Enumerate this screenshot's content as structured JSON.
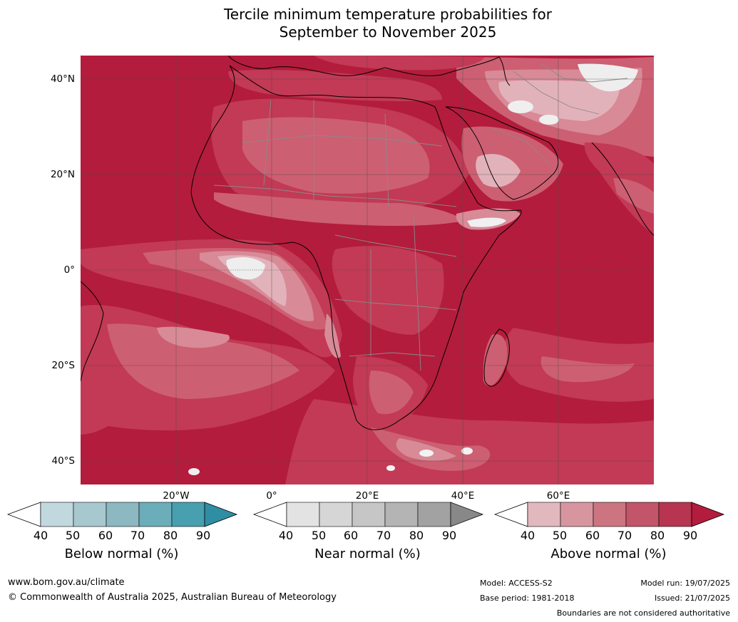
{
  "title": {
    "line1": "Tercile minimum temperature probabilities for",
    "line2": "September to November 2025"
  },
  "map": {
    "lat_labels": [
      "40°N",
      "20°N",
      "0°",
      "20°S",
      "40°S"
    ],
    "lon_labels": [
      "20°W",
      "0°",
      "20°E",
      "40°E",
      "60°E"
    ],
    "colors": {
      "ocean_above_90": "#b31c3c",
      "above_80": "#c23a55",
      "above_70": "#cd5f72",
      "above_60": "#d88a97",
      "above_50": "#e2b2ba",
      "near_normal": "#e6e6e6",
      "country_border": "#808080",
      "coast": "#000000",
      "grid": "#555555"
    }
  },
  "colorbars": [
    {
      "name": "below",
      "title": "Below normal (%)",
      "ticks": [
        "40",
        "50",
        "60",
        "70",
        "80",
        "90"
      ],
      "colors": [
        "#ffffff",
        "#c1d8de",
        "#a8c8cf",
        "#8cb8c2",
        "#6badb9",
        "#489fb0",
        "#2f8ea3"
      ]
    },
    {
      "name": "near",
      "title": "Near normal (%)",
      "ticks": [
        "40",
        "50",
        "60",
        "70",
        "80",
        "90"
      ],
      "colors": [
        "#ffffff",
        "#e3e3e3",
        "#d6d6d6",
        "#c6c6c6",
        "#b4b4b4",
        "#a2a2a2",
        "#888888"
      ]
    },
    {
      "name": "above",
      "title": "Above normal (%)",
      "ticks": [
        "40",
        "50",
        "60",
        "70",
        "80",
        "90"
      ],
      "colors": [
        "#ffffff",
        "#e2b8bf",
        "#d7969f",
        "#cc7580",
        "#c25569",
        "#b73550",
        "#b31c3c"
      ]
    }
  ],
  "footer": {
    "website": "www.bom.gov.au/climate",
    "copyright": "© Commonwealth of Australia 2025, Australian Bureau of Meteorology",
    "model": "Model: ACCESS-S2",
    "base_period": "Base period: 1981-2018",
    "model_run": "Model run: 19/07/2025",
    "issued": "Issued: 21/07/2025",
    "disclaimer": "Boundaries are not considered authoritative"
  }
}
